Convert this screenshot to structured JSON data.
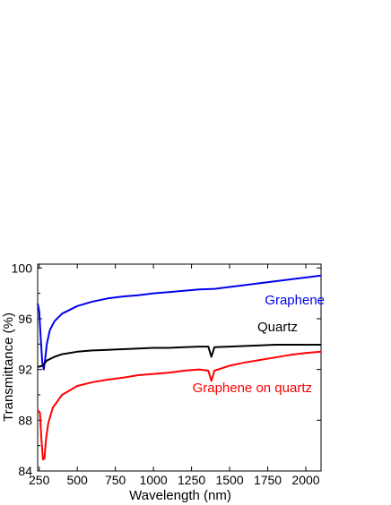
{
  "chart_data": {
    "type": "line",
    "xlabel": "Wavelength (nm)",
    "ylabel": "Transmittance (%)",
    "xlim": [
      240,
      2100
    ],
    "ylim": [
      84,
      100.3
    ],
    "xticks": [
      250,
      500,
      750,
      1000,
      1250,
      1500,
      1750,
      2000
    ],
    "yticks": [
      84,
      88,
      92,
      96,
      100
    ],
    "grid": false,
    "legend": "inline labels",
    "series": [
      {
        "name": "Graphene",
        "color": "#0000ee",
        "points": [
          [
            240,
            97.2
          ],
          [
            250,
            96.6
          ],
          [
            260,
            94.5
          ],
          [
            270,
            92.6
          ],
          [
            280,
            92.0
          ],
          [
            290,
            92.9
          ],
          [
            300,
            94.0
          ],
          [
            320,
            95.1
          ],
          [
            350,
            95.8
          ],
          [
            400,
            96.4
          ],
          [
            500,
            97.0
          ],
          [
            600,
            97.35
          ],
          [
            700,
            97.6
          ],
          [
            800,
            97.75
          ],
          [
            900,
            97.85
          ],
          [
            1000,
            98.0
          ],
          [
            1100,
            98.1
          ],
          [
            1200,
            98.2
          ],
          [
            1300,
            98.3
          ],
          [
            1400,
            98.35
          ],
          [
            1500,
            98.5
          ],
          [
            1600,
            98.65
          ],
          [
            1700,
            98.8
          ],
          [
            1800,
            98.95
          ],
          [
            1900,
            99.1
          ],
          [
            2000,
            99.25
          ],
          [
            2100,
            99.4
          ]
        ]
      },
      {
        "name": "Quartz",
        "color": "#000000",
        "points": [
          [
            240,
            92.2
          ],
          [
            260,
            92.25
          ],
          [
            280,
            92.4
          ],
          [
            300,
            92.7
          ],
          [
            350,
            93.0
          ],
          [
            400,
            93.2
          ],
          [
            500,
            93.4
          ],
          [
            600,
            93.5
          ],
          [
            700,
            93.55
          ],
          [
            800,
            93.6
          ],
          [
            900,
            93.65
          ],
          [
            1000,
            93.7
          ],
          [
            1100,
            93.7
          ],
          [
            1200,
            93.75
          ],
          [
            1300,
            93.8
          ],
          [
            1360,
            93.8
          ],
          [
            1380,
            93.0
          ],
          [
            1400,
            93.75
          ],
          [
            1500,
            93.8
          ],
          [
            1600,
            93.85
          ],
          [
            1700,
            93.9
          ],
          [
            1800,
            93.95
          ],
          [
            1900,
            93.95
          ],
          [
            2000,
            93.95
          ],
          [
            2100,
            93.95
          ]
        ]
      },
      {
        "name": "Graphene on quartz",
        "color": "#ff0000",
        "points": [
          [
            240,
            88.8
          ],
          [
            255,
            88.6
          ],
          [
            265,
            86.5
          ],
          [
            275,
            84.9
          ],
          [
            285,
            85.0
          ],
          [
            295,
            86.5
          ],
          [
            310,
            87.8
          ],
          [
            340,
            89.0
          ],
          [
            400,
            90.0
          ],
          [
            500,
            90.7
          ],
          [
            600,
            91.0
          ],
          [
            700,
            91.2
          ],
          [
            800,
            91.35
          ],
          [
            900,
            91.55
          ],
          [
            1000,
            91.65
          ],
          [
            1100,
            91.75
          ],
          [
            1200,
            91.9
          ],
          [
            1300,
            92.0
          ],
          [
            1360,
            91.9
          ],
          [
            1380,
            91.1
          ],
          [
            1400,
            91.9
          ],
          [
            1500,
            92.3
          ],
          [
            1600,
            92.55
          ],
          [
            1700,
            92.75
          ],
          [
            1800,
            92.95
          ],
          [
            1900,
            93.15
          ],
          [
            2000,
            93.3
          ],
          [
            2100,
            93.4
          ]
        ]
      }
    ]
  }
}
